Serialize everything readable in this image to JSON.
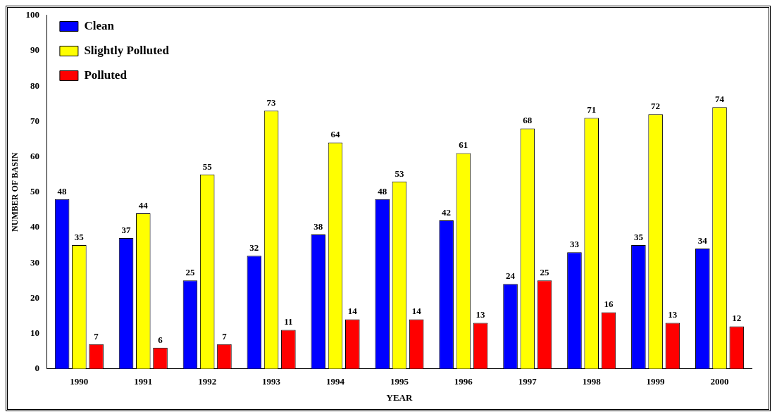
{
  "chart_data": {
    "type": "bar",
    "xlabel": "YEAR",
    "ylabel": "NUMBER OF BASIN",
    "categories": [
      "1990",
      "1991",
      "1992",
      "1993",
      "1994",
      "1995",
      "1996",
      "1997",
      "1998",
      "1999",
      "2000"
    ],
    "series": [
      {
        "name": "Clean",
        "color": "#0000ff",
        "values": [
          48,
          37,
          25,
          32,
          38,
          48,
          42,
          24,
          33,
          35,
          34
        ]
      },
      {
        "name": "Slightly Polluted",
        "color": "#ffff00",
        "values": [
          35,
          44,
          55,
          73,
          64,
          53,
          61,
          68,
          71,
          72,
          74
        ]
      },
      {
        "name": "Polluted",
        "color": "#ff0000",
        "values": [
          7,
          6,
          7,
          11,
          14,
          14,
          13,
          25,
          16,
          13,
          12
        ]
      }
    ],
    "ylim": [
      0,
      100
    ],
    "yticks": [
      0,
      10,
      20,
      30,
      40,
      50,
      60,
      70,
      80,
      90,
      100
    ],
    "grid": false,
    "legend": "top left",
    "data_labels": true
  }
}
